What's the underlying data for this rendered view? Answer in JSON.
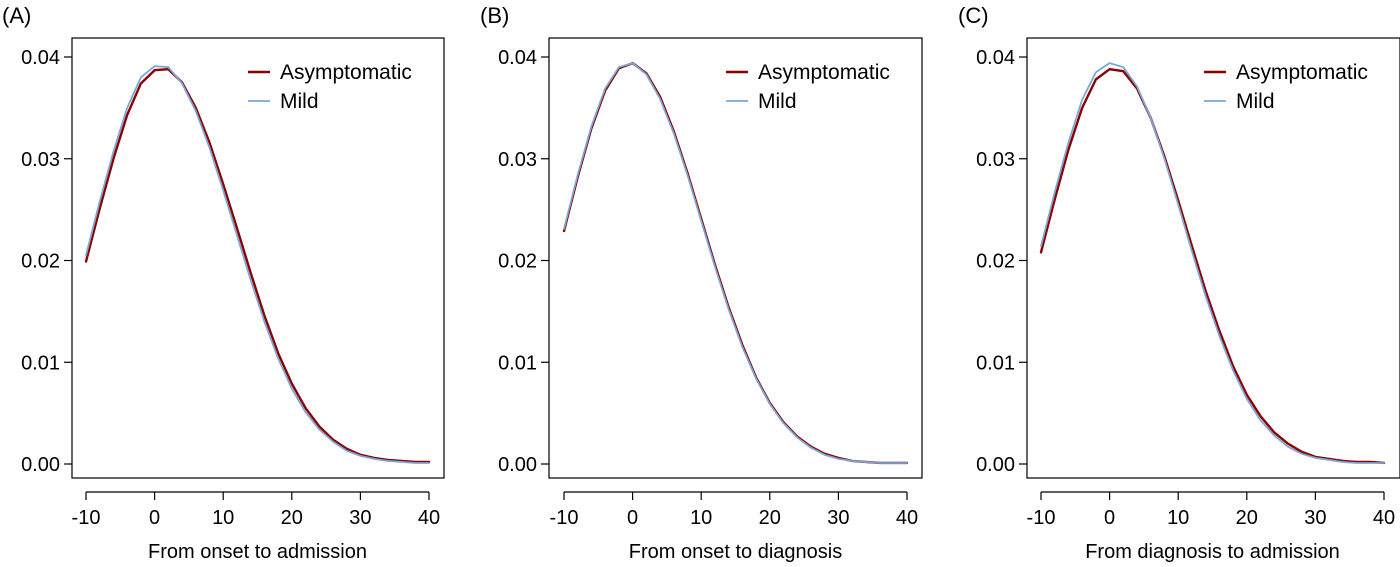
{
  "colors": {
    "asymptomatic": "#8b0000",
    "mild": "#7ba7d7"
  },
  "chart_data": [
    {
      "type": "line",
      "panel_label": "(A)",
      "title": "",
      "xlabel": "From onset to admission",
      "ylabel": "",
      "xlim": [
        -10,
        40
      ],
      "ylim": [
        0,
        0.04
      ],
      "xticks": [
        -10,
        0,
        10,
        20,
        30,
        40
      ],
      "xtick_labels": [
        "-10",
        "0",
        "10",
        "20",
        "30",
        "40"
      ],
      "yticks": [
        0,
        0.01,
        0.02,
        0.03,
        0.04
      ],
      "ytick_labels": [
        "0.00",
        "0.01",
        "0.02",
        "0.03",
        "0.04"
      ],
      "grid": false,
      "legend_position": "top-right",
      "x": [
        -10,
        -8,
        -6,
        -4,
        -2,
        0,
        2,
        4,
        6,
        8,
        10,
        12,
        14,
        16,
        18,
        20,
        22,
        24,
        26,
        28,
        30,
        32,
        34,
        36,
        38,
        40
      ],
      "series": [
        {
          "name": "Asymptomatic",
          "color": "#8b0000",
          "values": [
            0.0199,
            0.0251,
            0.03,
            0.0343,
            0.0374,
            0.0387,
            0.0388,
            0.0375,
            0.035,
            0.0316,
            0.0275,
            0.0232,
            0.0188,
            0.0146,
            0.0109,
            0.0079,
            0.0055,
            0.0037,
            0.0024,
            0.0015,
            0.0009,
            0.0006,
            0.0004,
            0.0003,
            0.0002,
            0.0002
          ]
        },
        {
          "name": "Mild",
          "color": "#7ba7d7",
          "values": [
            0.0205,
            0.0258,
            0.0307,
            0.035,
            0.038,
            0.0391,
            0.039,
            0.0374,
            0.0347,
            0.0311,
            0.0269,
            0.0225,
            0.0181,
            0.014,
            0.0104,
            0.0074,
            0.0051,
            0.0034,
            0.0022,
            0.0013,
            0.0008,
            0.0005,
            0.0003,
            0.0002,
            0.0001,
            0.0001
          ]
        }
      ]
    },
    {
      "type": "line",
      "panel_label": "(B)",
      "title": "",
      "xlabel": "From onset to diagnosis",
      "ylabel": "",
      "xlim": [
        -10,
        40
      ],
      "ylim": [
        0,
        0.04
      ],
      "xticks": [
        -10,
        0,
        10,
        20,
        30,
        40
      ],
      "xtick_labels": [
        "-10",
        "0",
        "10",
        "20",
        "30",
        "40"
      ],
      "yticks": [
        0,
        0.01,
        0.02,
        0.03,
        0.04
      ],
      "ytick_labels": [
        "0.00",
        "0.01",
        "0.02",
        "0.03",
        "0.04"
      ],
      "grid": false,
      "legend_position": "top-right",
      "x": [
        -10,
        -8,
        -6,
        -4,
        -2,
        0,
        2,
        4,
        6,
        8,
        10,
        12,
        14,
        16,
        18,
        20,
        22,
        24,
        26,
        28,
        30,
        32,
        34,
        36,
        38,
        40
      ],
      "series": [
        {
          "name": "Asymptomatic",
          "color": "#8b0000",
          "values": [
            0.0229,
            0.0282,
            0.033,
            0.0367,
            0.0389,
            0.0394,
            0.0384,
            0.0361,
            0.0327,
            0.0286,
            0.0241,
            0.0196,
            0.0154,
            0.0117,
            0.0085,
            0.006,
            0.0041,
            0.0027,
            0.0017,
            0.001,
            0.0006,
            0.0003,
            0.0002,
            0.0001,
            0.0001,
            0.0001
          ]
        },
        {
          "name": "Mild",
          "color": "#7ba7d7",
          "values": [
            0.0231,
            0.0284,
            0.0332,
            0.0369,
            0.039,
            0.0394,
            0.0383,
            0.0359,
            0.0325,
            0.0284,
            0.0239,
            0.0194,
            0.0152,
            0.0115,
            0.0084,
            0.0059,
            0.004,
            0.0026,
            0.0016,
            0.0009,
            0.0005,
            0.0003,
            0.0002,
            0.0001,
            0.0001,
            0.0001
          ]
        }
      ]
    },
    {
      "type": "line",
      "panel_label": "(C)",
      "title": "",
      "xlabel": "From diagnosis to admission",
      "ylabel": "",
      "xlim": [
        -10,
        40
      ],
      "ylim": [
        0,
        0.04
      ],
      "xticks": [
        -10,
        0,
        10,
        20,
        30,
        40
      ],
      "xtick_labels": [
        "-10",
        "0",
        "10",
        "20",
        "30",
        "40"
      ],
      "yticks": [
        0,
        0.01,
        0.02,
        0.03,
        0.04
      ],
      "ytick_labels": [
        "0.00",
        "0.01",
        "0.02",
        "0.03",
        "0.04"
      ],
      "grid": false,
      "legend_position": "top-right",
      "x": [
        -10,
        -8,
        -6,
        -4,
        -2,
        0,
        2,
        4,
        6,
        8,
        10,
        12,
        14,
        16,
        18,
        20,
        22,
        24,
        26,
        28,
        30,
        32,
        34,
        36,
        38,
        40
      ],
      "series": [
        {
          "name": "Asymptomatic",
          "color": "#8b0000",
          "values": [
            0.0208,
            0.026,
            0.0309,
            0.035,
            0.0378,
            0.0388,
            0.0386,
            0.0369,
            0.034,
            0.0302,
            0.0259,
            0.0214,
            0.017,
            0.0131,
            0.0096,
            0.0068,
            0.0047,
            0.0031,
            0.002,
            0.0012,
            0.0007,
            0.0005,
            0.0003,
            0.0002,
            0.0002,
            0.0001
          ]
        },
        {
          "name": "Mild",
          "color": "#7ba7d7",
          "values": [
            0.0214,
            0.0267,
            0.0316,
            0.0358,
            0.0385,
            0.0394,
            0.039,
            0.0371,
            0.034,
            0.03,
            0.0255,
            0.0209,
            0.0165,
            0.0126,
            0.0092,
            0.0064,
            0.0043,
            0.0028,
            0.0017,
            0.001,
            0.0006,
            0.0004,
            0.0002,
            0.0001,
            0.0001,
            0.0001
          ]
        }
      ]
    }
  ]
}
